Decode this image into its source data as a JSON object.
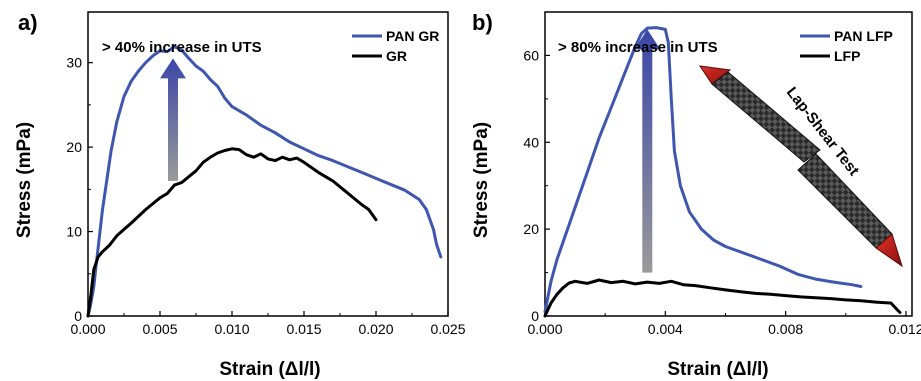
{
  "colors": {
    "pan": "#3f56b0",
    "plain": "#000000",
    "arrow_top": "#3a46a8",
    "arrow_bottom": "#9a9a9a",
    "lap_red": "#e0332b"
  },
  "chart_data": [
    {
      "type": "line",
      "panel_label": "a)",
      "annotation": "> 40% increase in UTS",
      "xlabel": "Strain (Δl/l)",
      "ylabel": "Stress (mPa)",
      "xlim": [
        0,
        0.025
      ],
      "ylim": [
        0,
        36
      ],
      "xticks": [
        0,
        0.005,
        0.01,
        0.015,
        0.02,
        0.025
      ],
      "xtick_labels": [
        "0.000",
        "0.005",
        "0.010",
        "0.015",
        "0.020",
        "0.025"
      ],
      "yticks": [
        0,
        10,
        20,
        30
      ],
      "ytick_labels": [
        "0",
        "10",
        "20",
        "30"
      ],
      "legend_position": "top-right",
      "arrow": {
        "x": 0.0059,
        "y_from": 16,
        "y_to": 30.5
      },
      "series": [
        {
          "name": "PAN GR",
          "color_key": "pan",
          "points": [
            [
              0,
              0
            ],
            [
              0.0002,
              1.5
            ],
            [
              0.0004,
              3.5
            ],
            [
              0.0006,
              6.5
            ],
            [
              0.0008,
              9.5
            ],
            [
              0.001,
              12.5
            ],
            [
              0.0013,
              16
            ],
            [
              0.0016,
              19.5
            ],
            [
              0.002,
              23
            ],
            [
              0.0025,
              26
            ],
            [
              0.003,
              27.8
            ],
            [
              0.0035,
              29
            ],
            [
              0.004,
              30
            ],
            [
              0.0045,
              30.8
            ],
            [
              0.005,
              31.4
            ],
            [
              0.0055,
              31.3
            ],
            [
              0.006,
              31.9
            ],
            [
              0.0065,
              31.5
            ],
            [
              0.007,
              30.5
            ],
            [
              0.0075,
              29.6
            ],
            [
              0.008,
              29
            ],
            [
              0.0085,
              28
            ],
            [
              0.009,
              27.2
            ],
            [
              0.0095,
              25.8
            ],
            [
              0.01,
              24.8
            ],
            [
              0.011,
              23.8
            ],
            [
              0.012,
              22.6
            ],
            [
              0.013,
              21.7
            ],
            [
              0.014,
              20.6
            ],
            [
              0.015,
              19.8
            ],
            [
              0.016,
              19
            ],
            [
              0.017,
              18.4
            ],
            [
              0.018,
              17.7
            ],
            [
              0.019,
              17
            ],
            [
              0.02,
              16.3
            ],
            [
              0.021,
              15.6
            ],
            [
              0.022,
              14.9
            ],
            [
              0.023,
              13.8
            ],
            [
              0.0235,
              12.6
            ],
            [
              0.024,
              10.2
            ],
            [
              0.0242,
              8.5
            ],
            [
              0.0245,
              7
            ]
          ]
        },
        {
          "name": "GR",
          "color_key": "plain",
          "points": [
            [
              0,
              0
            ],
            [
              0.0002,
              2.5
            ],
            [
              0.0004,
              5.5
            ],
            [
              0.0007,
              7
            ],
            [
              0.001,
              7.6
            ],
            [
              0.0015,
              8.4
            ],
            [
              0.002,
              9.5
            ],
            [
              0.003,
              11
            ],
            [
              0.004,
              12.6
            ],
            [
              0.005,
              14
            ],
            [
              0.0055,
              14.5
            ],
            [
              0.006,
              15.5
            ],
            [
              0.0065,
              15.8
            ],
            [
              0.007,
              16.5
            ],
            [
              0.0075,
              17.2
            ],
            [
              0.008,
              18.2
            ],
            [
              0.0085,
              18.8
            ],
            [
              0.009,
              19.3
            ],
            [
              0.0095,
              19.6
            ],
            [
              0.01,
              19.8
            ],
            [
              0.0105,
              19.7
            ],
            [
              0.011,
              19.1
            ],
            [
              0.0115,
              18.8
            ],
            [
              0.012,
              19.2
            ],
            [
              0.0125,
              18.6
            ],
            [
              0.013,
              18.4
            ],
            [
              0.0135,
              18.8
            ],
            [
              0.014,
              18.5
            ],
            [
              0.0145,
              18.7
            ],
            [
              0.015,
              18.2
            ],
            [
              0.0155,
              17.6
            ],
            [
              0.016,
              17
            ],
            [
              0.0165,
              16.5
            ],
            [
              0.017,
              16
            ],
            [
              0.0175,
              15.3
            ],
            [
              0.018,
              14.6
            ],
            [
              0.0185,
              13.9
            ],
            [
              0.019,
              13.2
            ],
            [
              0.0195,
              12.6
            ],
            [
              0.02,
              11.4
            ]
          ]
        }
      ]
    },
    {
      "type": "line",
      "panel_label": "b)",
      "annotation": "> 80% increase in UTS",
      "xlabel": "Strain (Δl/l)",
      "ylabel": "Stress (mPa)",
      "lap_shear_text": "Lap-Shear Test",
      "xlim": [
        0,
        0.0122
      ],
      "ylim": [
        0,
        70
      ],
      "xticks": [
        0,
        0.004,
        0.008,
        0.012
      ],
      "xtick_labels": [
        "0.000",
        "0.004",
        "0.008",
        "0.012"
      ],
      "yticks": [
        0,
        20,
        40,
        60
      ],
      "ytick_labels": [
        "0",
        "20",
        "40",
        "60"
      ],
      "legend_position": "top-right",
      "arrow": {
        "x": 0.0034,
        "y_from": 10,
        "y_to": 66
      },
      "series": [
        {
          "name": "PAN LFP",
          "color_key": "pan",
          "points": [
            [
              0,
              1
            ],
            [
              0.0002,
              8
            ],
            [
              0.0004,
              13
            ],
            [
              0.0006,
              17
            ],
            [
              0.0008,
              21
            ],
            [
              0.001,
              25
            ],
            [
              0.0014,
              33
            ],
            [
              0.0018,
              41
            ],
            [
              0.0022,
              48
            ],
            [
              0.0026,
              55
            ],
            [
              0.003,
              62
            ],
            [
              0.0032,
              65
            ],
            [
              0.0034,
              66.3
            ],
            [
              0.0037,
              66.4
            ],
            [
              0.004,
              66
            ],
            [
              0.0041,
              63
            ],
            [
              0.0042,
              50
            ],
            [
              0.0043,
              38
            ],
            [
              0.0045,
              30
            ],
            [
              0.0048,
              24
            ],
            [
              0.0052,
              20
            ],
            [
              0.0056,
              17.5
            ],
            [
              0.006,
              16
            ],
            [
              0.0066,
              14.5
            ],
            [
              0.0072,
              13
            ],
            [
              0.0078,
              11.5
            ],
            [
              0.0084,
              9.6
            ],
            [
              0.009,
              8.5
            ],
            [
              0.0096,
              7.8
            ],
            [
              0.0102,
              7.2
            ],
            [
              0.0105,
              6.8
            ]
          ]
        },
        {
          "name": "LFP",
          "color_key": "plain",
          "points": [
            [
              0,
              0
            ],
            [
              0.0002,
              3
            ],
            [
              0.0004,
              5
            ],
            [
              0.0006,
              6.5
            ],
            [
              0.0008,
              7.6
            ],
            [
              0.001,
              8
            ],
            [
              0.0014,
              7.5
            ],
            [
              0.0018,
              8.3
            ],
            [
              0.0022,
              7.7
            ],
            [
              0.0026,
              8
            ],
            [
              0.003,
              7.4
            ],
            [
              0.0034,
              7.8
            ],
            [
              0.0038,
              7.5
            ],
            [
              0.0042,
              8
            ],
            [
              0.0046,
              7.2
            ],
            [
              0.005,
              7
            ],
            [
              0.0055,
              6.5
            ],
            [
              0.006,
              6
            ],
            [
              0.0065,
              5.6
            ],
            [
              0.007,
              5.2
            ],
            [
              0.0075,
              5
            ],
            [
              0.008,
              4.7
            ],
            [
              0.0085,
              4.4
            ],
            [
              0.009,
              4.2
            ],
            [
              0.0095,
              4
            ],
            [
              0.01,
              3.7
            ],
            [
              0.0105,
              3.5
            ],
            [
              0.011,
              3.2
            ],
            [
              0.0115,
              3
            ],
            [
              0.0117,
              1.5
            ],
            [
              0.0118,
              0.8
            ]
          ]
        }
      ]
    }
  ]
}
